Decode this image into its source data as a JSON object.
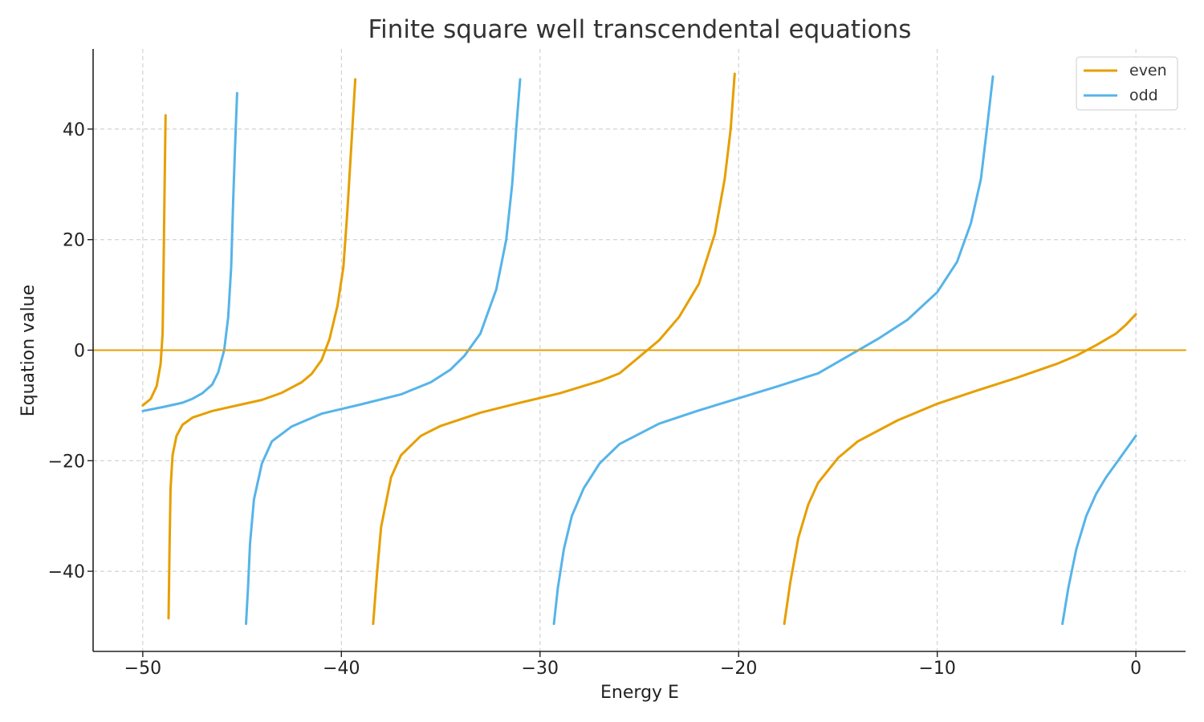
{
  "chart_data": {
    "type": "line",
    "title": "Finite square well transcendental equations",
    "xlabel": "Energy E",
    "ylabel": "Equation value",
    "xlim": [
      -52.5,
      2.5
    ],
    "ylim": [
      -54.5,
      54.5
    ],
    "xticks": [
      -50,
      -40,
      -30,
      -20,
      -10,
      0
    ],
    "yticks": [
      -40,
      -20,
      0,
      20,
      40
    ],
    "xtick_labels": [
      "−50",
      "−40",
      "−30",
      "−20",
      "−10",
      "0"
    ],
    "ytick_labels": [
      "−40",
      "−20",
      "0",
      "20",
      "40"
    ],
    "grid": true,
    "legend_position": "top-right",
    "series": [
      {
        "name": "even",
        "color": "#E69F00",
        "segments": [
          [
            [
              -50.0,
              -10.0
            ],
            [
              -49.6,
              -8.8
            ],
            [
              -49.3,
              -6.5
            ],
            [
              -49.1,
              -2.5
            ],
            [
              -49.0,
              3
            ],
            [
              -48.95,
              15
            ],
            [
              -48.9,
              30
            ],
            [
              -48.85,
              42.5
            ]
          ],
          [
            [
              -48.7,
              -48.5
            ],
            [
              -48.65,
              -35
            ],
            [
              -48.6,
              -25
            ],
            [
              -48.5,
              -19
            ],
            [
              -48.3,
              -15.5
            ],
            [
              -48.0,
              -13.5
            ],
            [
              -47.5,
              -12.2
            ],
            [
              -46.5,
              -11.0
            ],
            [
              -45.0,
              -9.8
            ],
            [
              -44.0,
              -9.0
            ],
            [
              -43.0,
              -7.7
            ],
            [
              -42.0,
              -5.8
            ],
            [
              -41.5,
              -4.3
            ],
            [
              -41.0,
              -1.8
            ],
            [
              -40.6,
              2
            ],
            [
              -40.2,
              8
            ],
            [
              -39.9,
              15
            ],
            [
              -39.7,
              25
            ],
            [
              -39.5,
              37
            ],
            [
              -39.3,
              49
            ]
          ],
          [
            [
              -38.4,
              -49.5
            ],
            [
              -38.2,
              -40
            ],
            [
              -38.0,
              -32
            ],
            [
              -37.5,
              -23
            ],
            [
              -37.0,
              -19
            ],
            [
              -36.0,
              -15.5
            ],
            [
              -35.0,
              -13.7
            ],
            [
              -33.0,
              -11.3
            ],
            [
              -31.0,
              -9.5
            ],
            [
              -29.0,
              -7.8
            ],
            [
              -27.0,
              -5.6
            ],
            [
              -26.0,
              -4.2
            ],
            [
              -25.0,
              -1.2
            ],
            [
              -24.0,
              1.8
            ],
            [
              -23.0,
              6
            ],
            [
              -22.0,
              12
            ],
            [
              -21.2,
              21
            ],
            [
              -20.7,
              31
            ],
            [
              -20.4,
              40
            ],
            [
              -20.2,
              50
            ]
          ],
          [
            [
              -17.7,
              -49.5
            ],
            [
              -17.4,
              -42
            ],
            [
              -17.0,
              -34
            ],
            [
              -16.5,
              -28
            ],
            [
              -16.0,
              -24
            ],
            [
              -15.0,
              -19.5
            ],
            [
              -14.0,
              -16.5
            ],
            [
              -12.0,
              -12.7
            ],
            [
              -10.0,
              -9.7
            ],
            [
              -8.0,
              -7.3
            ],
            [
              -6.0,
              -5.0
            ],
            [
              -4.0,
              -2.5
            ],
            [
              -3.0,
              -1.0
            ],
            [
              -2.0,
              0.9
            ],
            [
              -1.0,
              3.0
            ],
            [
              -0.5,
              4.6
            ],
            [
              0.0,
              6.5
            ]
          ]
        ]
      },
      {
        "name": "odd",
        "color": "#56B4E9",
        "segments": [
          [
            [
              -50.0,
              -11.0
            ],
            [
              -49.0,
              -10.3
            ],
            [
              -48.0,
              -9.5
            ],
            [
              -47.5,
              -8.8
            ],
            [
              -47.0,
              -7.8
            ],
            [
              -46.5,
              -6.2
            ],
            [
              -46.2,
              -4
            ],
            [
              -45.9,
              0
            ],
            [
              -45.7,
              6
            ],
            [
              -45.55,
              15
            ],
            [
              -45.45,
              27
            ],
            [
              -45.35,
              37
            ],
            [
              -45.25,
              46.5
            ]
          ],
          [
            [
              -44.8,
              -49.5
            ],
            [
              -44.7,
              -43
            ],
            [
              -44.6,
              -35
            ],
            [
              -44.4,
              -27
            ],
            [
              -44.0,
              -20.5
            ],
            [
              -43.5,
              -16.5
            ],
            [
              -42.5,
              -13.8
            ],
            [
              -41.0,
              -11.5
            ],
            [
              -39.0,
              -9.8
            ],
            [
              -37.0,
              -8.0
            ],
            [
              -35.5,
              -5.8
            ],
            [
              -34.5,
              -3.5
            ],
            [
              -33.8,
              -1
            ],
            [
              -33.0,
              3
            ],
            [
              -32.2,
              11
            ],
            [
              -31.7,
              20
            ],
            [
              -31.4,
              30
            ],
            [
              -31.2,
              40
            ],
            [
              -31.0,
              49
            ]
          ],
          [
            [
              -29.3,
              -49.5
            ],
            [
              -29.1,
              -43
            ],
            [
              -28.8,
              -36
            ],
            [
              -28.4,
              -30
            ],
            [
              -27.8,
              -25
            ],
            [
              -27.0,
              -20.5
            ],
            [
              -26.0,
              -17
            ],
            [
              -24.0,
              -13.3
            ],
            [
              -22.0,
              -10.9
            ],
            [
              -20.0,
              -8.7
            ],
            [
              -18.0,
              -6.5
            ],
            [
              -16.0,
              -4.2
            ],
            [
              -14.5,
              -1.1
            ],
            [
              -13.0,
              2
            ],
            [
              -11.5,
              5.5
            ],
            [
              -10.0,
              10.5
            ],
            [
              -9.0,
              16
            ],
            [
              -8.3,
              23
            ],
            [
              -7.8,
              31
            ],
            [
              -7.5,
              40
            ],
            [
              -7.2,
              49.5
            ]
          ],
          [
            [
              -3.7,
              -49.5
            ],
            [
              -3.4,
              -43
            ],
            [
              -3.0,
              -36
            ],
            [
              -2.5,
              -30
            ],
            [
              -2.0,
              -26
            ],
            [
              -1.5,
              -23
            ],
            [
              -1.0,
              -20.5
            ],
            [
              -0.5,
              -18
            ],
            [
              0.0,
              -15.5
            ]
          ]
        ]
      },
      {
        "name": "",
        "color": "#E69F00",
        "segments": [
          [
            [
              -52.5,
              0
            ],
            [
              2.5,
              0
            ]
          ]
        ]
      }
    ]
  }
}
